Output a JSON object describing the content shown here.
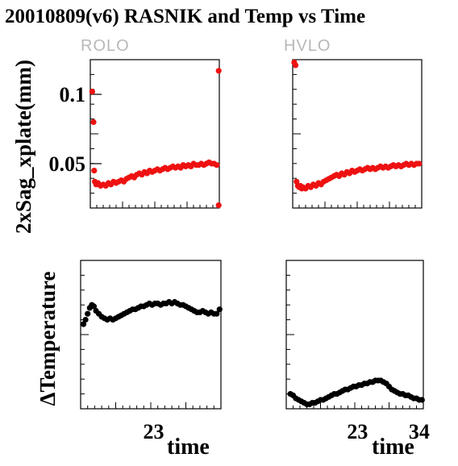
{
  "chart_data": {
    "type": "scatter",
    "title": "20010809(v6) RASNIK and Temp vs Time",
    "top_ylabel": "2xSag_xplate(mm)",
    "bottom_ylabel": "ΔTemperature",
    "xlabel": "time",
    "colors": {
      "sag": "#ee1111",
      "temp": "#000000"
    },
    "panels": [
      {
        "id": "rolo-sag",
        "title": "ROLO",
        "ylim": [
          0.018,
          0.125
        ],
        "xlim": [
          0,
          1
        ],
        "yticks": [
          {
            "v": 0.1,
            "label": "0.1"
          },
          {
            "v": 0.05,
            "label": "0.05"
          }
        ],
        "points": [
          [
            0.015,
            0.102
          ],
          [
            0.025,
            0.08
          ],
          [
            0.03,
            0.045
          ],
          [
            0.035,
            0.037
          ],
          [
            0.045,
            0.035
          ],
          [
            0.06,
            0.036
          ],
          [
            0.08,
            0.034
          ],
          [
            0.1,
            0.035
          ],
          [
            0.12,
            0.034
          ],
          [
            0.14,
            0.036
          ],
          [
            0.16,
            0.035
          ],
          [
            0.18,
            0.037
          ],
          [
            0.2,
            0.036
          ],
          [
            0.22,
            0.037
          ],
          [
            0.24,
            0.038
          ],
          [
            0.26,
            0.037
          ],
          [
            0.28,
            0.039
          ],
          [
            0.3,
            0.04
          ],
          [
            0.32,
            0.041
          ],
          [
            0.34,
            0.04
          ],
          [
            0.36,
            0.042
          ],
          [
            0.38,
            0.043
          ],
          [
            0.4,
            0.042
          ],
          [
            0.42,
            0.044
          ],
          [
            0.44,
            0.043
          ],
          [
            0.46,
            0.045
          ],
          [
            0.48,
            0.044
          ],
          [
            0.5,
            0.045
          ],
          [
            0.52,
            0.046
          ],
          [
            0.54,
            0.045
          ],
          [
            0.56,
            0.046
          ],
          [
            0.58,
            0.047
          ],
          [
            0.6,
            0.046
          ],
          [
            0.62,
            0.047
          ],
          [
            0.64,
            0.048
          ],
          [
            0.66,
            0.047
          ],
          [
            0.68,
            0.048
          ],
          [
            0.7,
            0.047
          ],
          [
            0.72,
            0.049
          ],
          [
            0.74,
            0.048
          ],
          [
            0.76,
            0.049
          ],
          [
            0.78,
            0.048
          ],
          [
            0.8,
            0.05
          ],
          [
            0.82,
            0.049
          ],
          [
            0.84,
            0.049
          ],
          [
            0.86,
            0.05
          ],
          [
            0.88,
            0.049
          ],
          [
            0.9,
            0.05
          ],
          [
            0.92,
            0.051
          ],
          [
            0.94,
            0.05
          ],
          [
            0.96,
            0.05
          ],
          [
            0.98,
            0.049
          ],
          [
            0.995,
            0.117
          ],
          [
            0.995,
            0.02
          ]
        ]
      },
      {
        "id": "hvlo-sag",
        "title": "HVLO",
        "ylim": [
          0.018,
          0.125
        ],
        "xlim": [
          0,
          1
        ],
        "yticks": [],
        "points": [
          [
            0.012,
            0.123
          ],
          [
            0.022,
            0.121
          ],
          [
            0.03,
            0.037
          ],
          [
            0.04,
            0.034
          ],
          [
            0.05,
            0.033
          ],
          [
            0.06,
            0.034
          ],
          [
            0.07,
            0.032
          ],
          [
            0.08,
            0.033
          ],
          [
            0.1,
            0.032
          ],
          [
            0.12,
            0.034
          ],
          [
            0.14,
            0.033
          ],
          [
            0.16,
            0.035
          ],
          [
            0.18,
            0.034
          ],
          [
            0.2,
            0.036
          ],
          [
            0.22,
            0.035
          ],
          [
            0.24,
            0.037
          ],
          [
            0.26,
            0.038
          ],
          [
            0.28,
            0.039
          ],
          [
            0.3,
            0.04
          ],
          [
            0.32,
            0.041
          ],
          [
            0.34,
            0.042
          ],
          [
            0.36,
            0.041
          ],
          [
            0.38,
            0.043
          ],
          [
            0.4,
            0.042
          ],
          [
            0.42,
            0.044
          ],
          [
            0.44,
            0.043
          ],
          [
            0.46,
            0.045
          ],
          [
            0.48,
            0.044
          ],
          [
            0.5,
            0.045
          ],
          [
            0.52,
            0.046
          ],
          [
            0.54,
            0.045
          ],
          [
            0.56,
            0.046
          ],
          [
            0.58,
            0.047
          ],
          [
            0.6,
            0.046
          ],
          [
            0.62,
            0.047
          ],
          [
            0.64,
            0.046
          ],
          [
            0.66,
            0.047
          ],
          [
            0.68,
            0.048
          ],
          [
            0.7,
            0.047
          ],
          [
            0.72,
            0.048
          ],
          [
            0.74,
            0.047
          ],
          [
            0.76,
            0.048
          ],
          [
            0.78,
            0.049
          ],
          [
            0.8,
            0.048
          ],
          [
            0.82,
            0.049
          ],
          [
            0.84,
            0.048
          ],
          [
            0.86,
            0.049
          ],
          [
            0.88,
            0.05
          ],
          [
            0.9,
            0.049
          ],
          [
            0.92,
            0.05
          ],
          [
            0.94,
            0.049
          ],
          [
            0.96,
            0.05
          ],
          [
            0.98,
            0.05
          ]
        ]
      },
      {
        "id": "rolo-temp",
        "title": "",
        "ylim": [
          0,
          1
        ],
        "xlim": [
          0,
          1
        ],
        "yticks": [],
        "xticks": [
          {
            "v": 0.52,
            "label": "23"
          }
        ],
        "points": [
          [
            0.02,
            0.57
          ],
          [
            0.035,
            0.6
          ],
          [
            0.05,
            0.64
          ],
          [
            0.065,
            0.68
          ],
          [
            0.08,
            0.7
          ],
          [
            0.095,
            0.69
          ],
          [
            0.11,
            0.66
          ],
          [
            0.13,
            0.64
          ],
          [
            0.15,
            0.62
          ],
          [
            0.17,
            0.61
          ],
          [
            0.19,
            0.6
          ],
          [
            0.21,
            0.61
          ],
          [
            0.23,
            0.6
          ],
          [
            0.25,
            0.61
          ],
          [
            0.27,
            0.62
          ],
          [
            0.29,
            0.63
          ],
          [
            0.31,
            0.64
          ],
          [
            0.33,
            0.65
          ],
          [
            0.35,
            0.66
          ],
          [
            0.37,
            0.67
          ],
          [
            0.39,
            0.67
          ],
          [
            0.41,
            0.68
          ],
          [
            0.43,
            0.69
          ],
          [
            0.45,
            0.69
          ],
          [
            0.47,
            0.7
          ],
          [
            0.49,
            0.71
          ],
          [
            0.51,
            0.7
          ],
          [
            0.53,
            0.71
          ],
          [
            0.55,
            0.71
          ],
          [
            0.57,
            0.7
          ],
          [
            0.59,
            0.71
          ],
          [
            0.61,
            0.71
          ],
          [
            0.63,
            0.72
          ],
          [
            0.65,
            0.71
          ],
          [
            0.67,
            0.72
          ],
          [
            0.69,
            0.71
          ],
          [
            0.71,
            0.7
          ],
          [
            0.73,
            0.7
          ],
          [
            0.75,
            0.69
          ],
          [
            0.77,
            0.68
          ],
          [
            0.79,
            0.67
          ],
          [
            0.81,
            0.66
          ],
          [
            0.83,
            0.65
          ],
          [
            0.85,
            0.65
          ],
          [
            0.87,
            0.66
          ],
          [
            0.89,
            0.65
          ],
          [
            0.91,
            0.64
          ],
          [
            0.93,
            0.65
          ],
          [
            0.95,
            0.64
          ],
          [
            0.97,
            0.64
          ],
          [
            0.99,
            0.67
          ]
        ]
      },
      {
        "id": "hvlo-temp",
        "title": "",
        "ylim": [
          0,
          1
        ],
        "xlim": [
          0,
          1
        ],
        "yticks": [],
        "xticks": [
          {
            "v": 0.52,
            "label": "23"
          },
          {
            "v": 0.97,
            "label": "34"
          }
        ],
        "points": [
          [
            0.03,
            0.1
          ],
          [
            0.05,
            0.09
          ],
          [
            0.07,
            0.07
          ],
          [
            0.09,
            0.06
          ],
          [
            0.11,
            0.05
          ],
          [
            0.13,
            0.04
          ],
          [
            0.15,
            0.03
          ],
          [
            0.17,
            0.03
          ],
          [
            0.19,
            0.04
          ],
          [
            0.21,
            0.04
          ],
          [
            0.23,
            0.05
          ],
          [
            0.25,
            0.06
          ],
          [
            0.27,
            0.06
          ],
          [
            0.29,
            0.07
          ],
          [
            0.31,
            0.08
          ],
          [
            0.33,
            0.09
          ],
          [
            0.35,
            0.1
          ],
          [
            0.37,
            0.1
          ],
          [
            0.39,
            0.11
          ],
          [
            0.41,
            0.12
          ],
          [
            0.43,
            0.13
          ],
          [
            0.45,
            0.13
          ],
          [
            0.47,
            0.14
          ],
          [
            0.49,
            0.15
          ],
          [
            0.51,
            0.15
          ],
          [
            0.53,
            0.16
          ],
          [
            0.55,
            0.16
          ],
          [
            0.57,
            0.17
          ],
          [
            0.59,
            0.17
          ],
          [
            0.61,
            0.18
          ],
          [
            0.63,
            0.18
          ],
          [
            0.65,
            0.19
          ],
          [
            0.67,
            0.19
          ],
          [
            0.69,
            0.19
          ],
          [
            0.71,
            0.18
          ],
          [
            0.73,
            0.17
          ],
          [
            0.75,
            0.15
          ],
          [
            0.77,
            0.13
          ],
          [
            0.79,
            0.12
          ],
          [
            0.81,
            0.11
          ],
          [
            0.83,
            0.1
          ],
          [
            0.85,
            0.1
          ],
          [
            0.87,
            0.09
          ],
          [
            0.89,
            0.09
          ],
          [
            0.91,
            0.08
          ],
          [
            0.93,
            0.07
          ],
          [
            0.95,
            0.07
          ],
          [
            0.97,
            0.06
          ],
          [
            0.99,
            0.06
          ]
        ]
      }
    ]
  }
}
